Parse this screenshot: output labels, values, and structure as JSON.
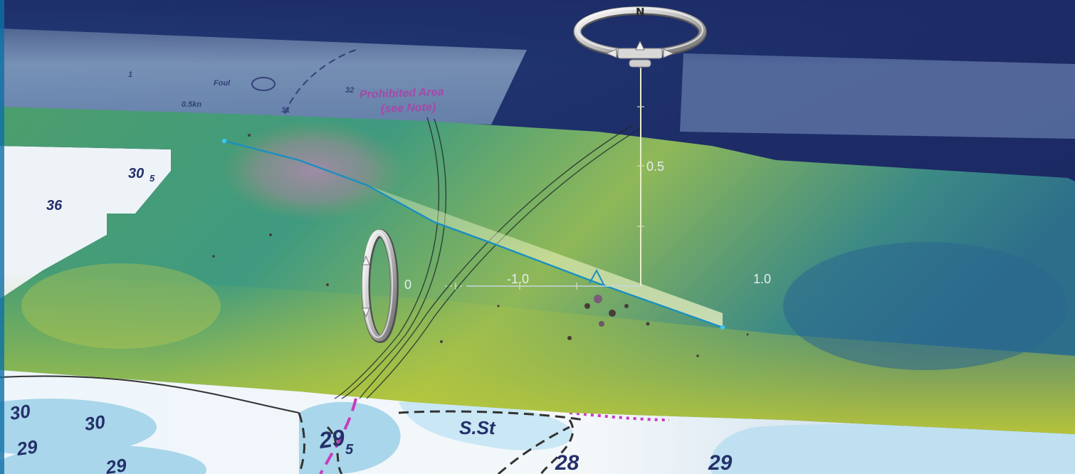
{
  "nautical_chart": {
    "soundings_upper": [
      "30",
      "36",
      "31",
      "34"
    ],
    "soundings_lower": [
      "30",
      "30",
      "29",
      "29",
      "29",
      "28",
      "29"
    ],
    "sounding_subscript": "5",
    "sounding_subscript_b": "5",
    "annotations": [
      "Prohibited Area",
      "(see Note)",
      "S.St",
      "0.5kn"
    ],
    "faint_labels": [
      "31",
      "32",
      "Foul",
      "1"
    ]
  },
  "axes": {
    "vertical_tick_label": "0.5",
    "horizontal_tick_labels": [
      "-1.0",
      "0",
      "1.0"
    ]
  },
  "compass": {
    "north_label": "N"
  },
  "colors": {
    "sky_top": "#1b2a62",
    "water_light": "#bfe3f2",
    "terrain_yellow": "#b7c936",
    "terrain_teal": "#2f8f8a",
    "profile_line": "#1a8fc0",
    "restricted_magenta": "#c93bbd"
  },
  "widgets": {
    "compass_icon": "compass-ring-icon",
    "tilt_icon": "tilt-ring-icon"
  }
}
